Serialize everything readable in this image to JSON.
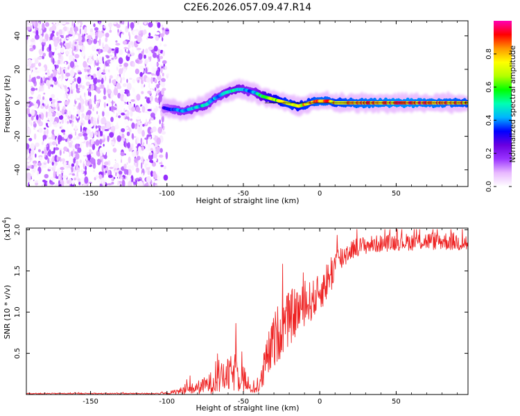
{
  "title": "C2E6.2026.057.09.47.R14",
  "chart_data": [
    {
      "type": "heatmap",
      "name": "spectrogram",
      "xlabel": "Height of straight line (km)",
      "ylabel": "Frequency (Hz)",
      "xlim": [
        -192,
        97
      ],
      "ylim": [
        -50,
        49
      ],
      "xticks": [
        -150,
        -100,
        -50,
        0,
        50
      ],
      "yticks": [
        -40,
        -20,
        0,
        20,
        40
      ],
      "xtick_labels": [
        "-150",
        "-100",
        "-50",
        "0",
        "50"
      ],
      "ytick_labels": [
        "-40",
        "-20",
        "0",
        "20",
        "40"
      ],
      "noise_region_x": [
        -192,
        -102
      ],
      "ridge": {
        "x": [
          -102,
          -98,
          -94,
          -90,
          -86,
          -82,
          -78,
          -74,
          -70,
          -66,
          -62,
          -58,
          -54,
          -50,
          -46,
          -42,
          -38,
          -34,
          -30,
          -26,
          -22,
          -18,
          -14,
          -10,
          -6,
          -2,
          2,
          6,
          10,
          20,
          30,
          40,
          50,
          60,
          70,
          80,
          90,
          97
        ],
        "freq_hz": [
          -3,
          -4,
          -4,
          -5,
          -4,
          -3,
          -2,
          -1,
          2,
          4,
          6,
          7,
          8,
          8,
          7,
          6,
          4,
          3,
          2,
          1,
          0,
          -1,
          -2,
          -1,
          0,
          1,
          1,
          1,
          0,
          0,
          0,
          0,
          0,
          0,
          0,
          0,
          0,
          0
        ],
        "amplitude": [
          0.3,
          0.35,
          0.4,
          0.45,
          0.45,
          0.5,
          0.5,
          0.5,
          0.45,
          0.45,
          0.5,
          0.55,
          0.55,
          0.5,
          0.45,
          0.5,
          0.6,
          0.7,
          0.75,
          0.8,
          0.85,
          0.85,
          0.8,
          0.85,
          0.85,
          0.9,
          0.9,
          0.9,
          0.85,
          0.9,
          0.92,
          0.93,
          0.95,
          0.95,
          0.93,
          0.92,
          0.9,
          0.88
        ]
      },
      "colorbar": {
        "label": "Normalized spectral amplitude",
        "range": [
          0,
          1
        ],
        "ticks": [
          0.0,
          0.2,
          0.4,
          0.6,
          0.8
        ],
        "tick_labels": [
          "0.0",
          "0.2",
          "0.4",
          "0.6",
          "0.8"
        ],
        "colors": [
          "#ffffff",
          "#e8b8ff",
          "#9a33ff",
          "#6a00e0",
          "#0000ff",
          "#00b4ff",
          "#00ffb4",
          "#00ff00",
          "#b4ff00",
          "#ffff00",
          "#ff9600",
          "#ff0000",
          "#ff00b4"
        ]
      }
    },
    {
      "type": "line",
      "name": "snr",
      "xlabel": "Height of straight line (km)",
      "ylabel": "SNR (10 * v/v)",
      "scale_label": "(x10",
      "scale_exponent": "4",
      "scale_suffix": ")",
      "color": "#ee2222",
      "xlim": [
        -192,
        97
      ],
      "ylim": [
        0,
        2.02
      ],
      "xticks": [
        -150,
        -100,
        -50,
        0,
        50
      ],
      "yticks": [
        0.5,
        1.0,
        1.5,
        2.0
      ],
      "xtick_labels": [
        "-150",
        "-100",
        "-50",
        "0",
        "50"
      ],
      "ytick_labels": [
        "0.5",
        "1.0",
        "1.5",
        "2.0"
      ],
      "envelope": {
        "x": [
          -192,
          -110,
          -100,
          -95,
          -90,
          -85,
          -80,
          -75,
          -70,
          -65,
          -60,
          -55,
          -50,
          -47,
          -45,
          -42,
          -40,
          -38,
          -36,
          -33,
          -30,
          -27,
          -25,
          -22,
          -20,
          -17,
          -15,
          -12,
          -10,
          -8,
          -5,
          -2,
          0,
          3,
          5,
          8,
          10,
          13,
          15,
          18,
          20,
          25,
          30,
          40,
          50,
          60,
          70,
          80,
          90,
          97
        ],
        "base": [
          0.01,
          0.01,
          0.01,
          0.02,
          0.03,
          0.04,
          0.06,
          0.08,
          0.11,
          0.14,
          0.17,
          0.2,
          0.16,
          0.07,
          0.05,
          0.05,
          0.07,
          0.12,
          0.28,
          0.42,
          0.55,
          0.65,
          0.72,
          0.77,
          0.82,
          0.88,
          0.93,
          0.97,
          1.0,
          1.02,
          1.07,
          1.12,
          1.18,
          1.24,
          1.32,
          1.42,
          1.52,
          1.58,
          1.62,
          1.68,
          1.72,
          1.76,
          1.78,
          1.8,
          1.82,
          1.82,
          1.83,
          1.83,
          1.82,
          1.8
        ],
        "amp": [
          0.008,
          0.008,
          0.015,
          0.04,
          0.06,
          0.08,
          0.1,
          0.13,
          0.18,
          0.22,
          0.26,
          0.3,
          0.26,
          0.08,
          0.06,
          0.06,
          0.1,
          0.2,
          0.3,
          0.36,
          0.42,
          0.45,
          0.45,
          0.42,
          0.42,
          0.4,
          0.38,
          0.34,
          0.3,
          0.34,
          0.3,
          0.3,
          0.27,
          0.3,
          0.3,
          0.3,
          0.28,
          0.22,
          0.2,
          0.18,
          0.16,
          0.14,
          0.14,
          0.13,
          0.13,
          0.13,
          0.14,
          0.14,
          0.14,
          0.15
        ]
      }
    }
  ]
}
